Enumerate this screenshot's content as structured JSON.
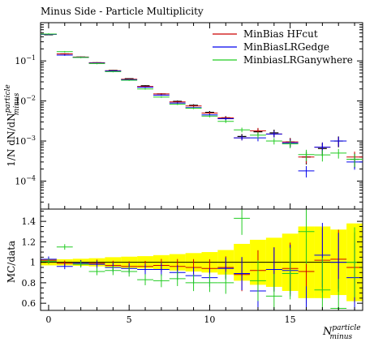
{
  "chart_data": [
    {
      "type": "scatter",
      "title": "Minus Side - Particle Multiplicity",
      "ylabel": "1/N dN/dN_minus^particle",
      "ylabel_parts": {
        "main": "1/N dN/dN",
        "sup": "particle",
        "sub": "minus"
      },
      "xlim": [
        -0.5,
        19.5
      ],
      "ylim": [
        2e-05,
        0.9
      ],
      "yscale": "log",
      "yticks": [
        {
          "value": 0.0001,
          "base": "10",
          "exp": "−4"
        },
        {
          "value": 0.001,
          "base": "10",
          "exp": "−3"
        },
        {
          "value": 0.01,
          "base": "10",
          "exp": "−2"
        },
        {
          "value": 0.1,
          "base": "10",
          "exp": "−1"
        }
      ],
      "legend_position": "top-right",
      "x": [
        0,
        1,
        2,
        3,
        4,
        5,
        6,
        7,
        8,
        9,
        10,
        11,
        12,
        13,
        14,
        15,
        16,
        17,
        18,
        19
      ],
      "reference": {
        "values": [
          0.45,
          0.15,
          0.125,
          0.09,
          0.058,
          0.036,
          0.024,
          0.015,
          0.0098,
          0.0078,
          0.0052,
          0.0038,
          0.0013,
          0.0017,
          0.0016,
          0.00095,
          0.0004,
          0.00065,
          0.001,
          0.00035
        ],
        "yerr_rel": [
          0.02,
          0.02,
          0.02,
          0.02,
          0.025,
          0.03,
          0.03,
          0.04,
          0.05,
          0.06,
          0.08,
          0.1,
          0.15,
          0.2,
          0.2,
          0.25,
          0.35,
          0.35,
          0.3,
          0.4
        ]
      },
      "series": [
        {
          "name": "MinBias HFcut",
          "color": "#cc0000",
          "values": [
            0.46,
            0.15,
            0.125,
            0.09,
            0.057,
            0.035,
            0.023,
            0.015,
            0.0095,
            0.0075,
            0.005,
            0.0038,
            0.0012,
            0.0018,
            0.0015,
            0.00095,
            0.0004,
            0.0007,
            0.001,
            0.0004
          ]
        },
        {
          "name": "MinBiasLRGedge",
          "color": "#0000ee",
          "values": [
            0.46,
            0.14,
            0.123,
            0.088,
            0.056,
            0.034,
            0.022,
            0.014,
            0.0089,
            0.0068,
            0.0045,
            0.0036,
            0.0012,
            0.0012,
            0.0015,
            0.0009,
            0.00018,
            0.0007,
            0.001,
            0.0003
          ]
        },
        {
          "name": "MinbiasLRGanywhere",
          "color": "#22cc22",
          "values": [
            0.47,
            0.17,
            0.122,
            0.086,
            0.054,
            0.033,
            0.02,
            0.0125,
            0.0083,
            0.0066,
            0.0042,
            0.0031,
            0.0019,
            0.0014,
            0.001,
            0.00085,
            0.00046,
            0.00045,
            0.0005,
            0.00035
          ]
        }
      ]
    },
    {
      "type": "scatter",
      "ylabel": "MC/data",
      "xlabel_parts": {
        "main": "N",
        "sup": "particle",
        "sub": "minus"
      },
      "xlim": [
        -0.5,
        19.5
      ],
      "ylim": [
        0.53,
        1.52
      ],
      "xticks": [
        0,
        5,
        10,
        15
      ],
      "yticks": [
        0.6,
        0.8,
        1,
        1.2,
        1.4
      ],
      "band": {
        "color": "#ffff00",
        "half_width": [
          0.03,
          0.03,
          0.035,
          0.04,
          0.05,
          0.055,
          0.06,
          0.07,
          0.08,
          0.09,
          0.1,
          0.12,
          0.18,
          0.22,
          0.24,
          0.28,
          0.35,
          0.35,
          0.32,
          0.38
        ]
      },
      "series": [
        {
          "name": "MinBias HFcut",
          "color": "#cc0000",
          "values": [
            1.02,
            0.99,
            0.99,
            0.99,
            0.97,
            0.96,
            0.96,
            0.97,
            0.96,
            0.95,
            0.94,
            0.95,
            0.88,
            0.92,
            0.93,
            0.94,
            0.91,
            1.02,
            1.03,
            0.95
          ]
        },
        {
          "name": "MinBiasLRGedge",
          "color": "#0000ee",
          "values": [
            1.03,
            0.96,
            0.99,
            0.98,
            0.95,
            0.94,
            0.93,
            0.93,
            0.9,
            0.87,
            0.85,
            0.94,
            0.89,
            0.72,
            0.93,
            0.92,
            0.45,
            1.07,
            1.0,
            0.85
          ]
        },
        {
          "name": "MinbiasLRGanywhere",
          "color": "#22cc22",
          "values": [
            1.01,
            1.15,
            0.98,
            0.91,
            0.92,
            0.91,
            0.83,
            0.82,
            0.84,
            0.8,
            0.8,
            0.8,
            1.43,
            0.82,
            0.67,
            0.89,
            1.3,
            0.73,
            0.55,
            1.0
          ]
        }
      ]
    }
  ]
}
